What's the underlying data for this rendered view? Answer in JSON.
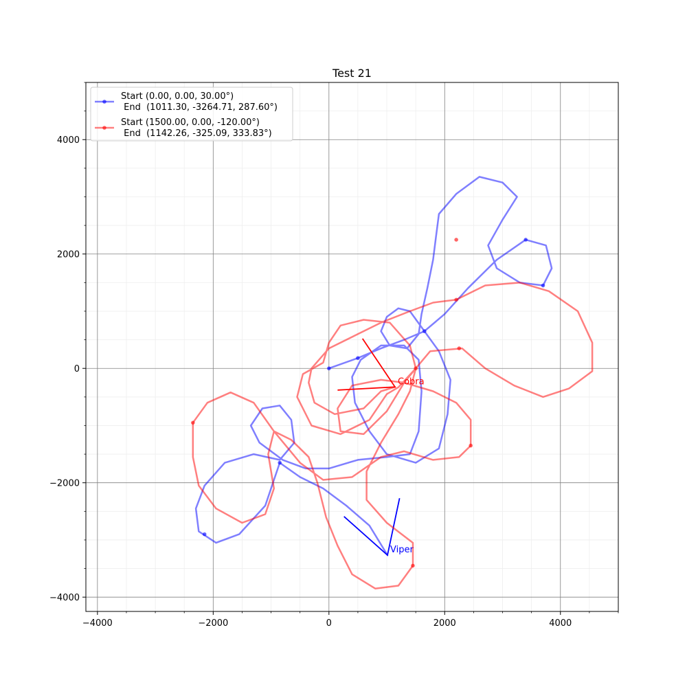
{
  "chart_data": {
    "type": "line",
    "title": "Test 21",
    "xlabel": "",
    "ylabel": "",
    "xlim": [
      -4200,
      5000
    ],
    "ylim": [
      -4250,
      5000
    ],
    "xticks": [
      -4000,
      -2000,
      0,
      2000,
      4000
    ],
    "yticks": [
      -4000,
      -2000,
      0,
      2000,
      4000
    ],
    "xtick_labels": [
      "−4000",
      "−2000",
      "0",
      "2000",
      "4000"
    ],
    "ytick_labels": [
      "−4000",
      "−2000",
      "0",
      "2000",
      "4000"
    ],
    "grid": true,
    "minor_grid": true,
    "legend_position": "upper left",
    "series": [
      {
        "name": "Start (0.00, 0.00, 30.00°)\n End  (1011.30, -3264.71, 287.60°)",
        "legend_line1": "Start (0.00, 0.00, 30.00°)",
        "legend_line2": " End  (1011.30, -3264.71, 287.60°)",
        "color": "#0000ff",
        "path": [
          [
            0,
            0
          ],
          [
            500,
            180
          ],
          [
            900,
            350
          ],
          [
            1300,
            500
          ],
          [
            1650,
            650
          ],
          [
            2000,
            950
          ],
          [
            2400,
            1400
          ],
          [
            2900,
            1900
          ],
          [
            3400,
            2250
          ],
          [
            3750,
            2150
          ],
          [
            3850,
            1750
          ],
          [
            3700,
            1450
          ],
          [
            3300,
            1500
          ],
          [
            2900,
            1750
          ],
          [
            2750,
            2150
          ],
          [
            3000,
            2600
          ],
          [
            3250,
            3000
          ],
          [
            3000,
            3250
          ],
          [
            2600,
            3350
          ],
          [
            2200,
            3050
          ],
          [
            1900,
            2700
          ],
          [
            1850,
            2300
          ],
          [
            1800,
            1900
          ],
          [
            1700,
            1400
          ],
          [
            1600,
            950
          ],
          [
            1550,
            600
          ],
          [
            1350,
            350
          ],
          [
            1050,
            400
          ],
          [
            900,
            650
          ],
          [
            1000,
            900
          ],
          [
            1200,
            1050
          ],
          [
            1400,
            1000
          ],
          [
            1650,
            650
          ],
          [
            1900,
            300
          ],
          [
            2100,
            -200
          ],
          [
            2050,
            -800
          ],
          [
            1900,
            -1400
          ],
          [
            1500,
            -1650
          ],
          [
            1000,
            -1500
          ],
          [
            700,
            -1100
          ],
          [
            450,
            -600
          ],
          [
            400,
            -150
          ],
          [
            550,
            150
          ],
          [
            900,
            400
          ],
          [
            1300,
            400
          ],
          [
            1550,
            150
          ],
          [
            1600,
            -400
          ],
          [
            1550,
            -1100
          ],
          [
            1400,
            -1500
          ],
          [
            1000,
            -1550
          ],
          [
            500,
            -1600
          ],
          [
            0,
            -1750
          ],
          [
            -400,
            -1750
          ],
          [
            -800,
            -1600
          ],
          [
            -1200,
            -1300
          ],
          [
            -1350,
            -1000
          ],
          [
            -1150,
            -700
          ],
          [
            -850,
            -650
          ],
          [
            -650,
            -900
          ],
          [
            -600,
            -1300
          ],
          [
            -850,
            -1600
          ],
          [
            -1300,
            -1500
          ],
          [
            -1800,
            -1650
          ],
          [
            -2150,
            -2050
          ],
          [
            -2300,
            -2450
          ],
          [
            -2250,
            -2850
          ],
          [
            -1950,
            -3050
          ],
          [
            -1550,
            -2900
          ],
          [
            -1100,
            -2400
          ],
          [
            -850,
            -1650
          ],
          [
            -500,
            -1900
          ],
          [
            -100,
            -2100
          ],
          [
            300,
            -2400
          ],
          [
            700,
            -2750
          ],
          [
            1011,
            -3265
          ]
        ],
        "markers": [
          [
            0,
            0
          ],
          [
            500,
            180
          ],
          [
            1650,
            650
          ],
          [
            3400,
            2250
          ],
          [
            3700,
            1450
          ],
          [
            -850,
            -1650
          ],
          [
            -2150,
            -2900
          ]
        ],
        "heading_deg": 287.6,
        "annotation": "Viper",
        "arrow": {
          "tip": [
            1011,
            -3265
          ],
          "ends": [
            [
              1220,
              -2270
            ],
            [
              260,
              -2590
            ]
          ]
        }
      },
      {
        "name": "Start (1500.00, 0.00, -120.00°)\n End  (1142.26, -325.09, 333.83°)",
        "legend_line1": "Start (1500.00, 0.00, -120.00°)",
        "legend_line2": " End  (1142.26, -325.09, 333.83°)",
        "color": "#ff0000",
        "path": [
          [
            1500,
            0
          ],
          [
            1400,
            -400
          ],
          [
            1200,
            -800
          ],
          [
            900,
            -1300
          ],
          [
            650,
            -1800
          ],
          [
            650,
            -2300
          ],
          [
            1000,
            -2700
          ],
          [
            1450,
            -3050
          ],
          [
            1450,
            -3450
          ],
          [
            1200,
            -3800
          ],
          [
            800,
            -3850
          ],
          [
            400,
            -3600
          ],
          [
            150,
            -3100
          ],
          [
            -50,
            -2600
          ],
          [
            -200,
            -2000
          ],
          [
            -350,
            -1550
          ],
          [
            -650,
            -1250
          ],
          [
            -950,
            -1100
          ],
          [
            -1050,
            -1500
          ],
          [
            -950,
            -2100
          ],
          [
            -1100,
            -2550
          ],
          [
            -1500,
            -2700
          ],
          [
            -1950,
            -2450
          ],
          [
            -2250,
            -2050
          ],
          [
            -2350,
            -1550
          ],
          [
            -2350,
            -950
          ],
          [
            -2100,
            -600
          ],
          [
            -1700,
            -420
          ],
          [
            -1300,
            -600
          ],
          [
            -950,
            -1100
          ],
          [
            -500,
            -1650
          ],
          [
            -100,
            -1950
          ],
          [
            400,
            -1900
          ],
          [
            900,
            -1550
          ],
          [
            1300,
            -1450
          ],
          [
            1800,
            -1600
          ],
          [
            2250,
            -1550
          ],
          [
            2450,
            -1350
          ],
          [
            2450,
            -900
          ],
          [
            2200,
            -600
          ],
          [
            1800,
            -400
          ],
          [
            1300,
            -250
          ],
          [
            900,
            -200
          ],
          [
            400,
            -300
          ],
          [
            150,
            -700
          ],
          [
            200,
            -1100
          ],
          [
            600,
            -1150
          ],
          [
            1000,
            -750
          ],
          [
            1300,
            -250
          ],
          [
            1500,
            0
          ],
          [
            1400,
            400
          ],
          [
            1050,
            800
          ],
          [
            600,
            850
          ],
          [
            200,
            750
          ],
          [
            0,
            450
          ],
          [
            -100,
            100
          ],
          [
            -450,
            -100
          ],
          [
            -550,
            -500
          ],
          [
            -300,
            -1000
          ],
          [
            200,
            -1150
          ],
          [
            700,
            -900
          ],
          [
            1000,
            -450
          ],
          [
            1200,
            -330
          ],
          [
            1500,
            0
          ],
          [
            1750,
            300
          ],
          [
            2300,
            350
          ],
          [
            2700,
            0
          ],
          [
            3200,
            -300
          ],
          [
            3700,
            -500
          ],
          [
            4150,
            -350
          ],
          [
            4550,
            -50
          ],
          [
            4550,
            450
          ],
          [
            4300,
            1000
          ],
          [
            3800,
            1350
          ],
          [
            3300,
            1500
          ],
          [
            2700,
            1450
          ],
          [
            2200,
            1200
          ],
          [
            1800,
            1150
          ],
          [
            1400,
            1000
          ],
          [
            900,
            800
          ],
          [
            500,
            600
          ],
          [
            0,
            350
          ],
          [
            -300,
            0
          ],
          [
            -350,
            -250
          ],
          [
            -250,
            -600
          ],
          [
            100,
            -800
          ],
          [
            600,
            -700
          ],
          [
            900,
            -400
          ],
          [
            1142,
            -325
          ]
        ],
        "markers": [
          [
            1500,
            0
          ],
          [
            2200,
            1200
          ],
          [
            2250,
            350
          ],
          [
            2450,
            -1350
          ],
          [
            1450,
            -3450
          ],
          [
            -2350,
            -950
          ],
          [
            2200,
            2250
          ]
        ],
        "heading_deg": 333.83,
        "annotation": "Cobra",
        "arrow": {
          "tip": [
            1142,
            -325
          ],
          "ends": [
            [
              580,
              520
            ],
            [
              150,
              -380
            ]
          ]
        }
      }
    ]
  }
}
